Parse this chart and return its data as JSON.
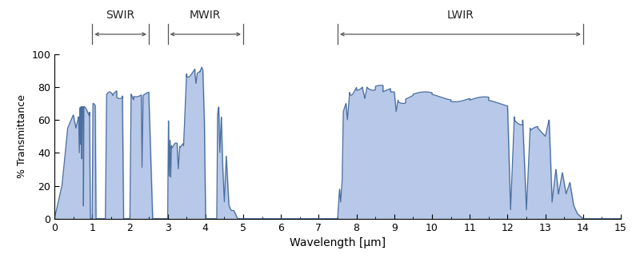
{
  "xlabel": "Wavelength [μm]",
  "ylabel": "% Transmittance",
  "xlim": [
    0,
    15
  ],
  "ylim": [
    0,
    100
  ],
  "xticks": [
    0,
    1,
    2,
    3,
    4,
    5,
    6,
    7,
    8,
    9,
    10,
    11,
    12,
    13,
    14,
    15
  ],
  "yticks": [
    0,
    20,
    40,
    60,
    80,
    100
  ],
  "fill_color": "#b8c8e8",
  "line_color": "#4a6fa0",
  "line_width": 0.9,
  "background_color": "#ffffff",
  "bands": [
    {
      "name": "SWIR",
      "x_start": 1.0,
      "x_end": 2.5
    },
    {
      "name": "MWIR",
      "x_start": 3.0,
      "x_end": 5.0
    },
    {
      "name": "LWIR",
      "x_start": 7.5,
      "x_end": 14.0
    }
  ],
  "annotation_fontsize": 10,
  "subplot_adjust": [
    0.8,
    0.19,
    0.085,
    0.97
  ]
}
